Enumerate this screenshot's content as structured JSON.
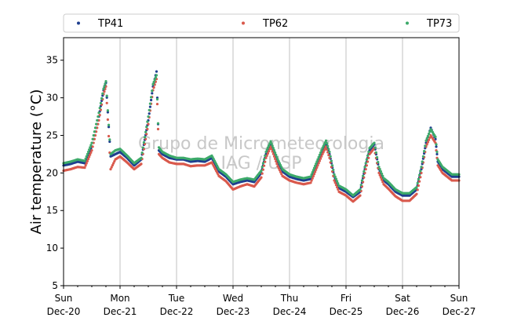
{
  "chart_data": {
    "type": "scatter",
    "title": "",
    "xlabel": "",
    "ylabel": "Air temperature (°C)",
    "ylim": [
      5,
      38
    ],
    "yticks": [
      5,
      10,
      15,
      20,
      25,
      30,
      35
    ],
    "xlim": [
      "2020-12-20T00:00",
      "2020-12-27T00:00"
    ],
    "xticks": [
      {
        "day": "Sun",
        "date": "Dec-20"
      },
      {
        "day": "Mon",
        "date": "Dec-21"
      },
      {
        "day": "Tue",
        "date": "Dec-22"
      },
      {
        "day": "Wed",
        "date": "Dec-23"
      },
      {
        "day": "Thu",
        "date": "Dec-24"
      },
      {
        "day": "Fri",
        "date": "Dec-25"
      },
      {
        "day": "Sat",
        "date": "Dec-26"
      },
      {
        "day": "Sun",
        "date": "Dec-27"
      }
    ],
    "grid": "vertical",
    "legend_position": "top",
    "watermark": [
      "Grupo de Micrometeorologia",
      "IAG / USP"
    ],
    "series": [
      {
        "name": "TP41",
        "color": "#1f3f8f",
        "x": [
          "12-20 00:00",
          "12-20 03:00",
          "12-20 06:00",
          "12-20 09:00",
          "12-20 12:00",
          "12-20 15:00",
          "12-20 17:00",
          "12-20 18:00",
          "12-20 20:00",
          "12-20 22:00",
          "12-21 00:00",
          "12-21 03:00",
          "12-21 06:00",
          "12-21 09:00",
          "12-21 12:00",
          "12-21 14:00",
          "12-21 15:30",
          "12-21 16:30",
          "12-21 18:00",
          "12-21 21:00",
          "12-22 00:00",
          "12-22 03:00",
          "12-22 06:00",
          "12-22 09:00",
          "12-22 12:00",
          "12-22 15:00",
          "12-22 18:00",
          "12-22 21:00",
          "12-23 00:00",
          "12-23 03:00",
          "12-23 06:00",
          "12-23 09:00",
          "12-23 12:00",
          "12-23 14:00",
          "12-23 16:00",
          "12-23 19:00",
          "12-23 21:00",
          "12-24 00:00",
          "12-24 03:00",
          "12-24 06:00",
          "12-24 09:00",
          "12-24 12:00",
          "12-24 14:00",
          "12-24 15:30",
          "12-24 17:00",
          "12-24 19:00",
          "12-24 21:00",
          "12-25 00:00",
          "12-25 03:00",
          "12-25 06:00",
          "12-25 08:00",
          "12-25 10:00",
          "12-25 12:00",
          "12-25 14:00",
          "12-25 16:00",
          "12-25 18:00",
          "12-25 21:00",
          "12-26 00:00",
          "12-26 03:00",
          "12-26 06:00",
          "12-26 08:00",
          "12-26 10:00",
          "12-26 12:00",
          "12-26 14:00",
          "12-26 15:00",
          "12-26 17:00",
          "12-26 19:00",
          "12-26 21:00",
          "12-27 00:00"
        ],
        "y": [
          21.0,
          21.2,
          21.5,
          21.3,
          23.5,
          27.5,
          31.0,
          32.0,
          22.2,
          22.5,
          22.8,
          22.0,
          21.0,
          21.8,
          27.0,
          31.5,
          33.5,
          23.0,
          22.5,
          22.0,
          21.8,
          21.8,
          21.5,
          21.6,
          21.5,
          22.0,
          20.2,
          19.5,
          18.5,
          18.8,
          19.0,
          18.8,
          20.0,
          22.5,
          24.0,
          21.5,
          20.2,
          19.5,
          19.2,
          19.0,
          19.2,
          21.5,
          23.0,
          24.0,
          22.5,
          19.5,
          18.0,
          17.5,
          16.8,
          17.5,
          20.5,
          23.0,
          23.8,
          20.5,
          19.0,
          18.5,
          17.5,
          17.0,
          17.0,
          17.8,
          20.5,
          24.0,
          26.0,
          24.5,
          21.5,
          20.5,
          20.0,
          19.5,
          19.5
        ]
      },
      {
        "name": "TP62",
        "color": "#d9594c",
        "x": [
          "12-20 00:00",
          "12-20 03:00",
          "12-20 06:00",
          "12-20 09:00",
          "12-20 12:00",
          "12-20 15:00",
          "12-20 17:00",
          "12-20 18:00",
          "12-20 20:00",
          "12-20 22:00",
          "12-21 00:00",
          "12-21 03:00",
          "12-21 06:00",
          "12-21 09:00",
          "12-21 12:00",
          "12-21 14:00",
          "12-21 15:30",
          "12-21 16:30",
          "12-21 18:00",
          "12-21 21:00",
          "12-22 00:00",
          "12-22 03:00",
          "12-22 06:00",
          "12-22 09:00",
          "12-22 12:00",
          "12-22 15:00",
          "12-22 18:00",
          "12-22 21:00",
          "12-23 00:00",
          "12-23 03:00",
          "12-23 06:00",
          "12-23 09:00",
          "12-23 12:00",
          "12-23 14:00",
          "12-23 16:00",
          "12-23 19:00",
          "12-23 21:00",
          "12-24 00:00",
          "12-24 03:00",
          "12-24 06:00",
          "12-24 09:00",
          "12-24 12:00",
          "12-24 14:00",
          "12-24 15:30",
          "12-24 17:00",
          "12-24 19:00",
          "12-24 21:00",
          "12-25 00:00",
          "12-25 03:00",
          "12-25 06:00",
          "12-25 08:00",
          "12-25 10:00",
          "12-25 12:00",
          "12-25 14:00",
          "12-25 16:00",
          "12-25 18:00",
          "12-25 21:00",
          "12-26 00:00",
          "12-26 03:00",
          "12-26 06:00",
          "12-26 08:00",
          "12-26 10:00",
          "12-26 12:00",
          "12-26 14:00",
          "12-26 15:00",
          "12-26 17:00",
          "12-26 19:00",
          "12-26 21:00",
          "12-27 00:00"
        ],
        "y": [
          20.3,
          20.5,
          20.8,
          20.7,
          23.0,
          27.0,
          30.5,
          31.5,
          20.5,
          21.8,
          22.2,
          21.4,
          20.5,
          21.2,
          26.5,
          31.0,
          32.5,
          22.5,
          22.0,
          21.4,
          21.2,
          21.2,
          20.9,
          21.0,
          21.0,
          21.4,
          19.6,
          18.9,
          17.8,
          18.2,
          18.5,
          18.2,
          19.4,
          22.0,
          23.5,
          20.9,
          19.6,
          19.0,
          18.7,
          18.5,
          18.7,
          21.0,
          22.5,
          23.5,
          22.0,
          19.0,
          17.5,
          17.0,
          16.2,
          17.0,
          20.0,
          22.5,
          23.3,
          20.0,
          18.5,
          17.9,
          16.9,
          16.3,
          16.3,
          17.2,
          20.0,
          23.5,
          25.0,
          24.0,
          21.0,
          20.0,
          19.5,
          19.0,
          19.0
        ]
      },
      {
        "name": "TP73",
        "color": "#3daa6a",
        "x": [
          "12-20 00:00",
          "12-20 03:00",
          "12-20 06:00",
          "12-20 09:00",
          "12-20 12:00",
          "12-20 15:00",
          "12-20 17:00",
          "12-20 18:00",
          "12-20 20:00",
          "12-20 22:00",
          "12-21 00:00",
          "12-21 03:00",
          "12-21 06:00",
          "12-21 09:00",
          "12-21 12:00",
          "12-21 14:00",
          "12-21 15:30",
          "12-21 16:30",
          "12-21 18:00",
          "12-21 21:00",
          "12-22 00:00",
          "12-22 03:00",
          "12-22 06:00",
          "12-22 09:00",
          "12-22 12:00",
          "12-22 15:00",
          "12-22 18:00",
          "12-22 21:00",
          "12-23 00:00",
          "12-23 03:00",
          "12-23 06:00",
          "12-23 09:00",
          "12-23 12:00",
          "12-23 14:00",
          "12-23 16:00",
          "12-23 19:00",
          "12-23 21:00",
          "12-24 00:00",
          "12-24 03:00",
          "12-24 06:00",
          "12-24 09:00",
          "12-24 12:00",
          "12-24 14:00",
          "12-24 15:30",
          "12-24 17:00",
          "12-24 19:00",
          "12-24 21:00",
          "12-25 00:00",
          "12-25 03:00",
          "12-25 06:00",
          "12-25 08:00",
          "12-25 10:00",
          "12-25 12:00",
          "12-25 14:00",
          "12-25 16:00",
          "12-25 18:00",
          "12-25 21:00",
          "12-26 00:00",
          "12-26 03:00",
          "12-26 06:00",
          "12-26 08:00",
          "12-26 10:00",
          "12-26 12:00",
          "12-26 14:00",
          "12-26 15:00",
          "12-26 17:00",
          "12-26 19:00",
          "12-26 21:00",
          "12-27 00:00"
        ],
        "y": [
          21.3,
          21.5,
          21.8,
          21.6,
          24.0,
          28.0,
          31.2,
          32.2,
          22.5,
          23.0,
          23.2,
          22.3,
          21.3,
          22.0,
          27.5,
          31.8,
          33.0,
          23.4,
          22.8,
          22.3,
          22.0,
          22.0,
          21.8,
          21.9,
          21.8,
          22.3,
          20.5,
          19.8,
          18.8,
          19.1,
          19.3,
          19.1,
          20.3,
          22.8,
          24.2,
          21.8,
          20.5,
          19.8,
          19.5,
          19.3,
          19.5,
          21.8,
          23.3,
          24.3,
          22.8,
          19.8,
          18.3,
          17.8,
          17.0,
          17.8,
          20.8,
          23.3,
          24.0,
          20.8,
          19.3,
          18.8,
          17.8,
          17.3,
          17.3,
          18.1,
          20.8,
          24.3,
          25.8,
          24.8,
          21.8,
          20.8,
          20.3,
          19.8,
          19.8
        ]
      }
    ]
  }
}
